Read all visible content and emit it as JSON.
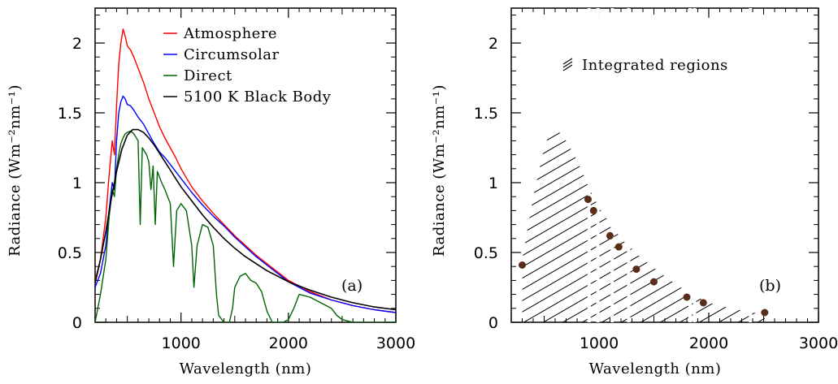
{
  "chart_data": [
    {
      "type": "line",
      "panel_label": "(a)",
      "xlabel": "Wavelength (nm)",
      "ylabel": "Radiance (Wm⁻²nm⁻¹)",
      "xlim": [
        200,
        3000
      ],
      "ylim": [
        0,
        2.25
      ],
      "xticks": [
        1000,
        2000,
        3000
      ],
      "yticks": [
        0,
        0.5,
        1,
        1.5,
        2
      ],
      "ytick_labels": [
        "0",
        "0.5",
        "1",
        "1.5",
        "2"
      ],
      "legend_position": "top-right",
      "series": [
        {
          "name": "Atmosphere",
          "color": "#ff0000",
          "points": [
            [
              200,
              0.3
            ],
            [
              250,
              0.45
            ],
            [
              300,
              0.75
            ],
            [
              330,
              1.05
            ],
            [
              360,
              1.3
            ],
            [
              380,
              1.2
            ],
            [
              400,
              1.55
            ],
            [
              420,
              1.85
            ],
            [
              440,
              2.0
            ],
            [
              460,
              2.1
            ],
            [
              480,
              2.05
            ],
            [
              500,
              1.98
            ],
            [
              530,
              1.95
            ],
            [
              560,
              1.9
            ],
            [
              600,
              1.82
            ],
            [
              650,
              1.72
            ],
            [
              700,
              1.6
            ],
            [
              750,
              1.5
            ],
            [
              800,
              1.4
            ],
            [
              850,
              1.32
            ],
            [
              900,
              1.25
            ],
            [
              950,
              1.18
            ],
            [
              1000,
              1.1
            ],
            [
              1100,
              0.97
            ],
            [
              1200,
              0.87
            ],
            [
              1300,
              0.78
            ],
            [
              1400,
              0.7
            ],
            [
              1500,
              0.62
            ],
            [
              1600,
              0.55
            ],
            [
              1700,
              0.48
            ],
            [
              1800,
              0.42
            ],
            [
              1900,
              0.36
            ],
            [
              2000,
              0.3
            ],
            [
              2200,
              0.22
            ],
            [
              2400,
              0.16
            ],
            [
              2600,
              0.12
            ],
            [
              2800,
              0.09
            ],
            [
              3000,
              0.07
            ]
          ]
        },
        {
          "name": "Circumsolar",
          "color": "#0000ff",
          "points": [
            [
              200,
              0.25
            ],
            [
              250,
              0.35
            ],
            [
              300,
              0.55
            ],
            [
              330,
              0.8
            ],
            [
              360,
              1.0
            ],
            [
              380,
              0.95
            ],
            [
              400,
              1.3
            ],
            [
              420,
              1.5
            ],
            [
              440,
              1.58
            ],
            [
              460,
              1.62
            ],
            [
              480,
              1.6
            ],
            [
              500,
              1.56
            ],
            [
              530,
              1.55
            ],
            [
              560,
              1.52
            ],
            [
              600,
              1.47
            ],
            [
              650,
              1.42
            ],
            [
              700,
              1.35
            ],
            [
              750,
              1.28
            ],
            [
              800,
              1.22
            ],
            [
              850,
              1.18
            ],
            [
              900,
              1.13
            ],
            [
              950,
              1.08
            ],
            [
              1000,
              1.03
            ],
            [
              1100,
              0.93
            ],
            [
              1200,
              0.84
            ],
            [
              1300,
              0.76
            ],
            [
              1400,
              0.69
            ],
            [
              1500,
              0.61
            ],
            [
              1600,
              0.54
            ],
            [
              1700,
              0.47
            ],
            [
              1800,
              0.41
            ],
            [
              1900,
              0.35
            ],
            [
              2000,
              0.29
            ],
            [
              2200,
              0.21
            ],
            [
              2400,
              0.16
            ],
            [
              2600,
              0.12
            ],
            [
              2800,
              0.09
            ],
            [
              3000,
              0.07
            ]
          ]
        },
        {
          "name": "Direct",
          "color": "#006400",
          "points": [
            [
              200,
              0.0
            ],
            [
              250,
              0.2
            ],
            [
              300,
              0.45
            ],
            [
              330,
              0.75
            ],
            [
              360,
              0.95
            ],
            [
              380,
              0.9
            ],
            [
              400,
              1.1
            ],
            [
              420,
              1.2
            ],
            [
              440,
              1.28
            ],
            [
              460,
              1.32
            ],
            [
              480,
              1.35
            ],
            [
              500,
              1.36
            ],
            [
              530,
              1.37
            ],
            [
              560,
              1.35
            ],
            [
              600,
              1.3
            ],
            [
              620,
              0.7
            ],
            [
              640,
              1.25
            ],
            [
              680,
              1.2
            ],
            [
              700,
              1.15
            ],
            [
              720,
              0.95
            ],
            [
              740,
              1.12
            ],
            [
              760,
              0.7
            ],
            [
              780,
              1.08
            ],
            [
              820,
              1.0
            ],
            [
              850,
              0.95
            ],
            [
              900,
              0.85
            ],
            [
              930,
              0.4
            ],
            [
              960,
              0.8
            ],
            [
              1000,
              0.85
            ],
            [
              1050,
              0.8
            ],
            [
              1100,
              0.55
            ],
            [
              1120,
              0.25
            ],
            [
              1150,
              0.55
            ],
            [
              1200,
              0.7
            ],
            [
              1250,
              0.68
            ],
            [
              1300,
              0.55
            ],
            [
              1330,
              0.2
            ],
            [
              1350,
              0.05
            ],
            [
              1400,
              0.0
            ],
            [
              1450,
              0.0
            ],
            [
              1480,
              0.1
            ],
            [
              1500,
              0.25
            ],
            [
              1550,
              0.33
            ],
            [
              1600,
              0.35
            ],
            [
              1650,
              0.3
            ],
            [
              1700,
              0.28
            ],
            [
              1750,
              0.22
            ],
            [
              1800,
              0.08
            ],
            [
              1850,
              0.0
            ],
            [
              1900,
              0.0
            ],
            [
              1950,
              0.0
            ],
            [
              2000,
              0.02
            ],
            [
              2050,
              0.1
            ],
            [
              2100,
              0.2
            ],
            [
              2200,
              0.18
            ],
            [
              2300,
              0.14
            ],
            [
              2400,
              0.1
            ],
            [
              2450,
              0.05
            ],
            [
              2500,
              0.02
            ],
            [
              2600,
              0.0
            ],
            [
              2800,
              0.0
            ],
            [
              3000,
              0.0
            ]
          ]
        },
        {
          "name": "5100 K Black Body",
          "color": "#000000",
          "points": [
            [
              200,
              0.28
            ],
            [
              250,
              0.45
            ],
            [
              300,
              0.65
            ],
            [
              350,
              0.88
            ],
            [
              400,
              1.08
            ],
            [
              450,
              1.24
            ],
            [
              500,
              1.34
            ],
            [
              550,
              1.38
            ],
            [
              600,
              1.38
            ],
            [
              650,
              1.36
            ],
            [
              700,
              1.32
            ],
            [
              750,
              1.27
            ],
            [
              800,
              1.21
            ],
            [
              850,
              1.15
            ],
            [
              900,
              1.09
            ],
            [
              950,
              1.03
            ],
            [
              1000,
              0.97
            ],
            [
              1100,
              0.87
            ],
            [
              1200,
              0.77
            ],
            [
              1300,
              0.68
            ],
            [
              1400,
              0.6
            ],
            [
              1500,
              0.53
            ],
            [
              1600,
              0.47
            ],
            [
              1700,
              0.42
            ],
            [
              1800,
              0.37
            ],
            [
              1900,
              0.33
            ],
            [
              2000,
              0.29
            ],
            [
              2200,
              0.23
            ],
            [
              2400,
              0.18
            ],
            [
              2600,
              0.14
            ],
            [
              2800,
              0.11
            ],
            [
              3000,
              0.09
            ]
          ]
        }
      ]
    },
    {
      "type": "scatter",
      "panel_label": "(b)",
      "xlabel": "Wavelength (nm)",
      "ylabel": "Radiance (Wm⁻²nm⁻¹)",
      "xlim": [
        200,
        3000
      ],
      "ylim": [
        0,
        2.25
      ],
      "xticks": [
        1000,
        2000,
        3000
      ],
      "yticks": [
        0,
        0.5,
        1,
        1.5,
        2
      ],
      "ytick_labels": [
        "0",
        "0.5",
        "1",
        "1.5",
        "2"
      ],
      "legend": {
        "label": "Integrated regions",
        "position": "top-right"
      },
      "points": {
        "color": "#5a2d18",
        "x": [
          300,
          900,
          950,
          1100,
          1180,
          1340,
          1500,
          1800,
          1950,
          2510
        ],
        "y": [
          0.41,
          0.88,
          0.8,
          0.62,
          0.54,
          0.38,
          0.29,
          0.18,
          0.14,
          0.07
        ]
      },
      "shaded_region_outline": {
        "x": [
          300,
          400,
          500,
          560,
          620,
          700,
          800,
          900,
          1000,
          1200,
          1400,
          1600,
          1800,
          2000,
          2200,
          2400,
          2510
        ],
        "y": [
          0.45,
          0.9,
          1.25,
          1.38,
          1.38,
          1.3,
          1.16,
          0.98,
          0.82,
          0.6,
          0.45,
          0.33,
          0.22,
          0.14,
          0.1,
          0.07,
          0.06
        ]
      },
      "gaps_x": [
        910,
        990,
        1120,
        1270,
        1830,
        1870,
        2380
      ]
    }
  ]
}
